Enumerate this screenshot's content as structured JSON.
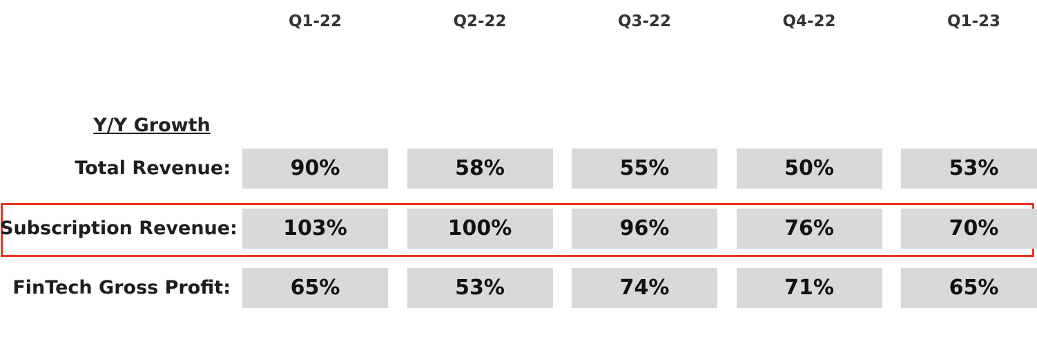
{
  "columns": [
    "Q1-22",
    "Q2-22",
    "Q3-22",
    "Q4-22",
    "Q1-23"
  ],
  "section_title": "Y/Y Growth",
  "table": {
    "rows": [
      {
        "label": "Total Revenue:",
        "values": [
          "90%",
          "58%",
          "55%",
          "50%",
          "53%"
        ]
      },
      {
        "label": "Subscription Revenue:",
        "values": [
          "103%",
          "100%",
          "96%",
          "76%",
          "70%"
        ],
        "highlighted": true
      },
      {
        "label": "FinTech Gross Profit:",
        "values": [
          "65%",
          "53%",
          "74%",
          "71%",
          "65%"
        ]
      }
    ]
  }
}
